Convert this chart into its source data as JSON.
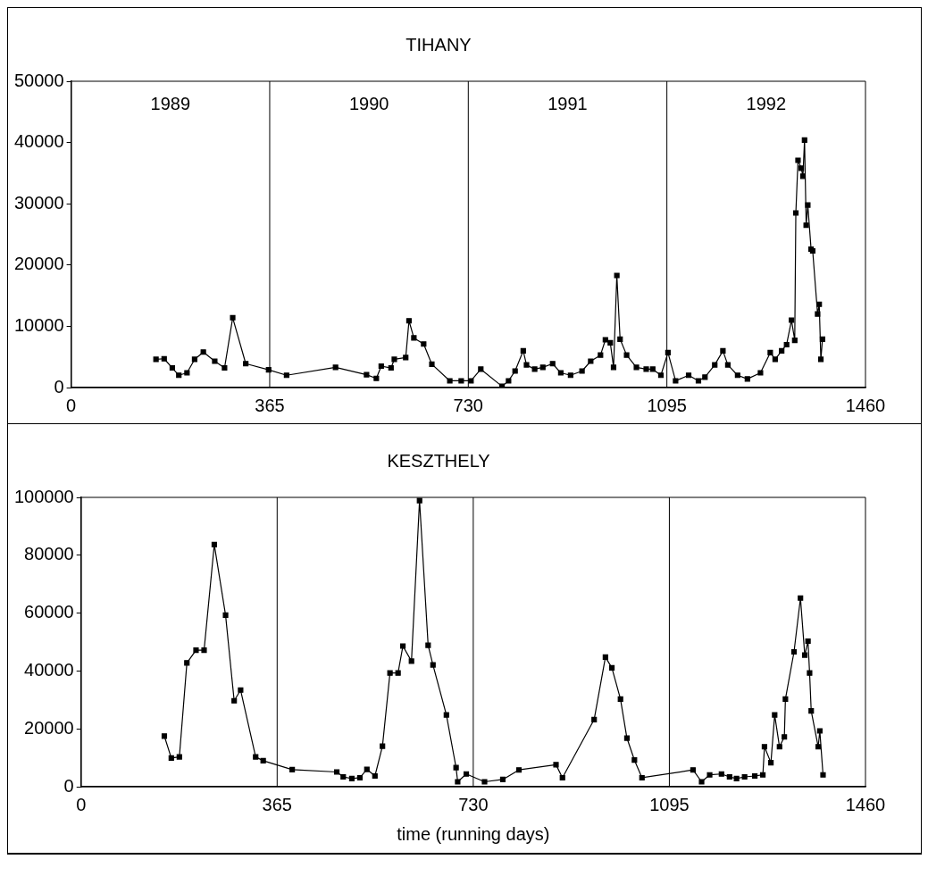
{
  "chart_data": [
    {
      "type": "line",
      "title": "TIHANY",
      "marker": "square",
      "xlim": [
        0,
        1460
      ],
      "xticks": [
        0,
        365,
        730,
        1095,
        1460
      ],
      "ylim": [
        0,
        50000
      ],
      "yticks": [
        0,
        10000,
        20000,
        30000,
        40000,
        50000
      ],
      "ref_lines": [
        {
          "axis": "x",
          "value": 365,
          "color": "#000000"
        },
        {
          "axis": "x",
          "value": 730,
          "color": "#000000"
        },
        {
          "axis": "x",
          "value": 1095,
          "color": "#000000"
        }
      ],
      "annotations": [
        "1989",
        "1990",
        "1991",
        "1992"
      ],
      "series": [
        {
          "color": "#000000",
          "x": [
            156,
            171,
            186,
            198,
            213,
            227,
            243,
            264,
            282,
            297,
            321,
            363,
            396,
            486,
            543,
            561,
            570,
            588,
            594,
            615,
            621,
            630,
            648,
            663,
            696,
            717,
            735,
            753,
            792,
            804,
            816,
            831,
            837,
            852,
            867,
            885,
            900,
            918,
            939,
            955,
            973,
            982,
            991,
            997,
            1003,
            1009,
            1021,
            1039,
            1057,
            1069,
            1084,
            1097,
            1111,
            1135,
            1153,
            1165,
            1183,
            1198,
            1207,
            1225,
            1243,
            1267,
            1285,
            1294,
            1306,
            1315,
            1324,
            1330,
            1332,
            1336,
            1342,
            1345,
            1348,
            1351,
            1354,
            1360,
            1363,
            1372,
            1375,
            1378,
            1381
          ],
          "values": [
            4600,
            4700,
            3200,
            2000,
            2400,
            4600,
            5800,
            4300,
            3200,
            11400,
            3900,
            2900,
            2000,
            3300,
            2100,
            1500,
            3500,
            3200,
            4600,
            4900,
            10900,
            8100,
            7100,
            3800,
            1100,
            1100,
            1100,
            3000,
            200,
            1100,
            2700,
            6000,
            3700,
            3000,
            3300,
            3900,
            2400,
            2000,
            2700,
            4300,
            5300,
            7800,
            7300,
            3300,
            18300,
            7900,
            5300,
            3300,
            3000,
            3000,
            2000,
            5700,
            1100,
            2000,
            1100,
            1700,
            3700,
            6000,
            3700,
            2000,
            1400,
            2400,
            5700,
            4600,
            6000,
            7000,
            11000,
            7700,
            28500,
            37100,
            35800,
            34500,
            40400,
            26500,
            29800,
            22600,
            22300,
            12000,
            13600,
            4600,
            7900
          ]
        }
      ]
    },
    {
      "type": "line",
      "title": "KESZTHELY",
      "xlabel": "time (running days)",
      "marker": "square",
      "xlim": [
        0,
        1460
      ],
      "xticks": [
        0,
        365,
        730,
        1095,
        1460
      ],
      "ylim": [
        0,
        100000
      ],
      "yticks": [
        0,
        20000,
        40000,
        60000,
        80000,
        100000
      ],
      "ref_lines": [
        {
          "axis": "x",
          "value": 365,
          "color": "#000000"
        },
        {
          "axis": "x",
          "value": 730,
          "color": "#000000"
        },
        {
          "axis": "x",
          "value": 1095,
          "color": "#000000"
        }
      ],
      "series": [
        {
          "color": "#000000",
          "x": [
            155,
            168,
            183,
            197,
            214,
            229,
            248,
            269,
            285,
            297,
            325,
            339,
            393,
            476,
            488,
            504,
            519,
            532,
            547,
            561,
            575,
            590,
            599,
            615,
            630,
            646,
            655,
            680,
            698,
            701,
            717,
            751,
            785,
            815,
            884,
            896,
            955,
            976,
            988,
            1004,
            1016,
            1030,
            1044,
            1139,
            1155,
            1170,
            1192,
            1207,
            1220,
            1235,
            1254,
            1269,
            1272,
            1284,
            1291,
            1300,
            1309,
            1311,
            1327,
            1339,
            1347,
            1353,
            1356,
            1359,
            1372,
            1375,
            1381
          ],
          "values": [
            17500,
            9900,
            10300,
            42800,
            47200,
            47200,
            83700,
            59300,
            29700,
            33400,
            10300,
            9000,
            5900,
            5100,
            3400,
            2800,
            3100,
            6000,
            3700,
            14000,
            39300,
            39300,
            48600,
            43400,
            98900,
            48900,
            42100,
            24800,
            6600,
            1700,
            4400,
            1700,
            2500,
            5800,
            7600,
            3100,
            23200,
            44800,
            41100,
            30300,
            16800,
            9200,
            3100,
            5800,
            1700,
            4100,
            4400,
            3400,
            2800,
            3400,
            3700,
            4100,
            13800,
            8300,
            24800,
            13800,
            17200,
            30300,
            46600,
            65200,
            45500,
            50300,
            39300,
            26200,
            13800,
            19300,
            4100
          ]
        }
      ]
    }
  ]
}
